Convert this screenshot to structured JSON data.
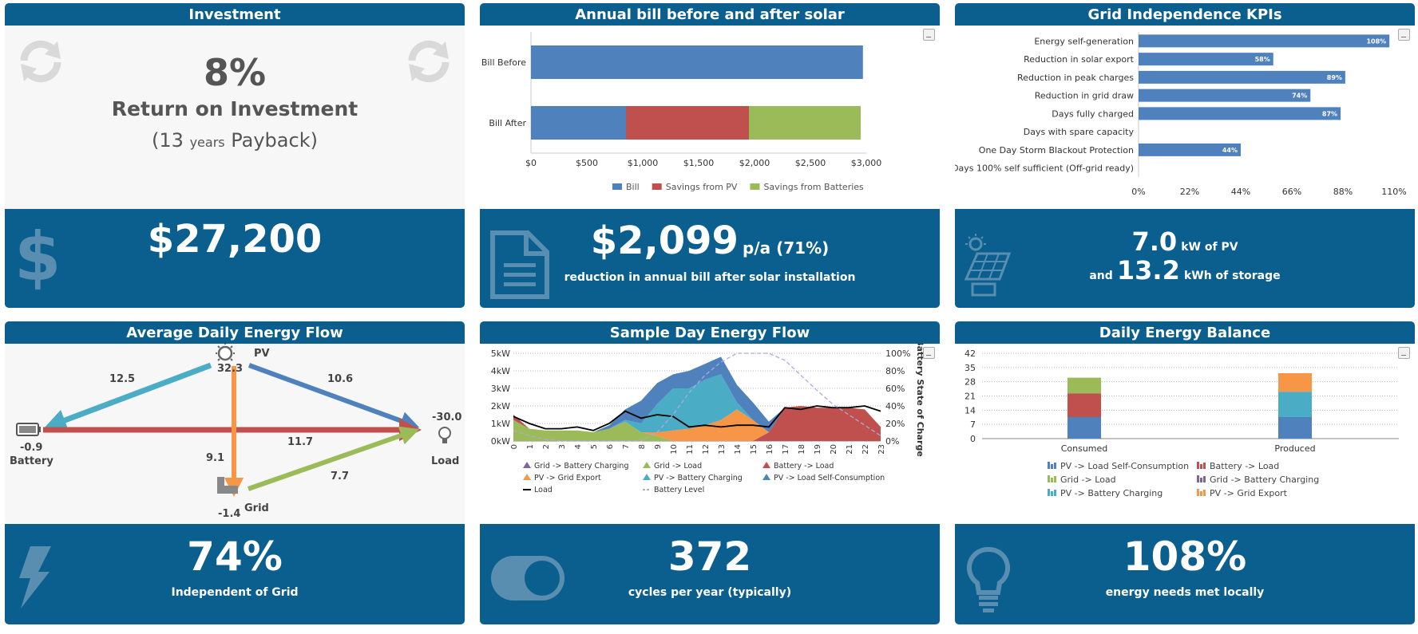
{
  "colors": {
    "header": "#0a5f8e",
    "blue": "#4f81bd",
    "red": "#c0504d",
    "green": "#9bbb59",
    "orange": "#f79646",
    "cyan": "#4bacc6",
    "purple": "#8064a2"
  },
  "investment": {
    "title": "Investment",
    "roi_value": "8%",
    "roi_label": "Return on Investment",
    "payback_prefix": "(13",
    "payback_unit": "years",
    "payback_suffix": "Payback)",
    "cost": "$27,200",
    "icons": [
      "refresh-icon",
      "dollar-icon"
    ]
  },
  "annual_bill": {
    "title": "Annual bill before and after solar",
    "amount": "$2,099",
    "amount_suffix": "p/a (71%)",
    "caption": "reduction in annual bill after solar installation"
  },
  "kpis": {
    "title": "Grid Independence KPIs",
    "pv_value": "7.0",
    "pv_unit": "kW of PV",
    "and_text": "and",
    "storage_value": "13.2",
    "storage_unit": "kWh of storage"
  },
  "avg_flow": {
    "title": "Average Daily Energy Flow",
    "pv_label": "PV",
    "pv_value": "32.3",
    "battery_label": "Battery",
    "battery_value": "-0.9",
    "load_label": "Load",
    "load_value": "-30.0",
    "grid_label": "Grid",
    "grid_value": "-1.4",
    "flow_pv_battery": "12.5",
    "flow_pv_load": "10.6",
    "flow_battery_load": "11.7",
    "flow_pv_grid": "9.1",
    "flow_grid_load": "7.7",
    "independent_value": "74%",
    "independent_label": "Independent of Grid"
  },
  "sample_day": {
    "title": "Sample Day Energy Flow",
    "cycles_value": "372",
    "cycles_label": "cycles per year (typically)"
  },
  "daily_balance": {
    "title": "Daily Energy Balance",
    "met_value": "108%",
    "met_label": "energy needs met locally"
  },
  "chart_data": [
    {
      "id": "annual-bill",
      "type": "bar",
      "orientation": "horizontal",
      "stacked": true,
      "categories": [
        "Bill Before",
        "Bill After"
      ],
      "series": [
        {
          "name": "Bill",
          "color": "#4f81bd",
          "values": [
            2970,
            850
          ]
        },
        {
          "name": "Savings from PV",
          "color": "#c0504d",
          "values": [
            0,
            1100
          ]
        },
        {
          "name": "Savings from Batteries",
          "color": "#9bbb59",
          "values": [
            0,
            1000
          ]
        }
      ],
      "xticks": [
        "$0",
        "$500",
        "$1,000",
        "$1,500",
        "$2,000",
        "$2,500",
        "$3,000"
      ],
      "xlim": [
        0,
        3000
      ],
      "legend": "bottom"
    },
    {
      "id": "grid-kpis",
      "type": "bar",
      "orientation": "horizontal",
      "categories": [
        "Energy self-generation",
        "Reduction in solar export",
        "Reduction in peak charges",
        "Reduction in grid draw",
        "Days fully charged",
        "Days with spare capacity",
        "One Day Storm Blackout Protection",
        "Days 100% self sufficient (Off-grid ready)"
      ],
      "values": [
        108,
        58,
        89,
        74,
        87,
        0,
        44,
        0
      ],
      "data_labels": [
        "108%",
        "58%",
        "89%",
        "74%",
        "87%",
        "",
        "44%",
        ""
      ],
      "xticks": [
        "0%",
        "22%",
        "44%",
        "66%",
        "88%",
        "110%"
      ],
      "xlim": [
        0,
        110
      ]
    },
    {
      "id": "sample-day",
      "type": "area",
      "stacked": true,
      "x": [
        0,
        1,
        2,
        3,
        4,
        5,
        6,
        7,
        8,
        9,
        10,
        11,
        12,
        13,
        14,
        15,
        16,
        17,
        18,
        19,
        20,
        21,
        22,
        23
      ],
      "yticks_left": [
        "0kW",
        "1kW",
        "2kW",
        "3kW",
        "4kW",
        "5kW"
      ],
      "ylim": [
        0,
        5
      ],
      "yticks_right": [
        "0%",
        "20%",
        "40%",
        "60%",
        "80%",
        "100%"
      ],
      "ylabel_right": "Battery State of Charge",
      "series": [
        {
          "name": "Grid -> Battery Charging",
          "color": "#8064a2",
          "values": [
            0,
            0,
            0,
            0,
            0,
            0,
            0,
            0,
            0,
            0,
            0,
            0,
            0,
            0,
            0,
            0,
            0,
            0,
            0,
            0,
            0,
            0,
            0,
            0
          ]
        },
        {
          "name": "Grid -> Load",
          "color": "#9bbb59",
          "values": [
            1.2,
            0.7,
            0.6,
            0.6,
            0.6,
            0.5,
            0.7,
            1.1,
            0.5,
            0.3,
            0,
            0,
            0,
            0,
            0,
            0,
            0,
            0,
            0,
            0,
            0,
            0,
            0,
            0
          ]
        },
        {
          "name": "Battery -> Load",
          "color": "#c0504d",
          "values": [
            0.3,
            0,
            0,
            0,
            0,
            0,
            0,
            0,
            0,
            0,
            0,
            0,
            0,
            0,
            0,
            0,
            0.5,
            1.9,
            2.0,
            1.9,
            1.9,
            1.9,
            1.8,
            0.8
          ]
        },
        {
          "name": "PV -> Grid Export",
          "color": "#f79646",
          "values": [
            0,
            0,
            0,
            0,
            0,
            0,
            0,
            0,
            0,
            0.2,
            0.6,
            0.7,
            0.9,
            1.2,
            1.8,
            1.2,
            0,
            0,
            0,
            0,
            0,
            0,
            0,
            0
          ]
        },
        {
          "name": "PV -> Battery Charging",
          "color": "#4bacc6",
          "values": [
            0,
            0,
            0,
            0,
            0,
            0,
            0,
            0.1,
            0.5,
            1.6,
            2.4,
            2.3,
            2.6,
            2.6,
            0.4,
            0,
            0,
            0,
            0,
            0,
            0,
            0,
            0,
            0
          ]
        },
        {
          "name": "PV -> Load Self-Consumption",
          "color": "#4f81bd",
          "values": [
            0,
            0,
            0,
            0,
            0,
            0,
            0.2,
            0.6,
            1.3,
            1.2,
            0.8,
            1.0,
            0.9,
            1.0,
            1.0,
            1.0,
            0.6,
            0,
            0,
            0,
            0,
            0,
            0,
            0
          ]
        },
        {
          "name": "Load",
          "color": "#000000",
          "type": "line",
          "values": [
            1.4,
            1.0,
            0.7,
            0.7,
            0.8,
            0.6,
            1.0,
            1.7,
            1.3,
            1.5,
            1.4,
            0.8,
            0.9,
            0.8,
            0.9,
            0.9,
            0.8,
            1.9,
            1.8,
            2.0,
            1.9,
            1.9,
            2.0,
            1.7
          ]
        },
        {
          "name": "Battery Level",
          "color": "#aaaadd",
          "type": "line",
          "axis": "right",
          "values": [
            12,
            6,
            2,
            0,
            0,
            0,
            0,
            0,
            0,
            10,
            30,
            55,
            75,
            90,
            100,
            100,
            100,
            92,
            75,
            58,
            42,
            30,
            18,
            6
          ]
        }
      ],
      "legend": "bottom"
    },
    {
      "id": "daily-balance",
      "type": "bar",
      "stacked": true,
      "categories": [
        "Consumed",
        "Produced"
      ],
      "yticks": [
        "0",
        "7",
        "14",
        "21",
        "28",
        "35",
        "42"
      ],
      "ylim": [
        0,
        42
      ],
      "series": [
        {
          "name": "PV -> Load Self-Consumption",
          "color": "#4f81bd",
          "values": [
            10.6,
            10.6
          ]
        },
        {
          "name": "Battery -> Load",
          "color": "#c0504d",
          "values": [
            11.7,
            0
          ]
        },
        {
          "name": "Grid -> Load",
          "color": "#9bbb59",
          "values": [
            7.7,
            0
          ]
        },
        {
          "name": "Grid -> Battery Charging",
          "color": "#8064a2",
          "values": [
            0,
            0
          ]
        },
        {
          "name": "PV -> Battery Charging",
          "color": "#4bacc6",
          "values": [
            0,
            12.5
          ]
        },
        {
          "name": "PV -> Grid Export",
          "color": "#f79646",
          "values": [
            0,
            9.1
          ]
        }
      ],
      "legend": "bottom"
    }
  ]
}
